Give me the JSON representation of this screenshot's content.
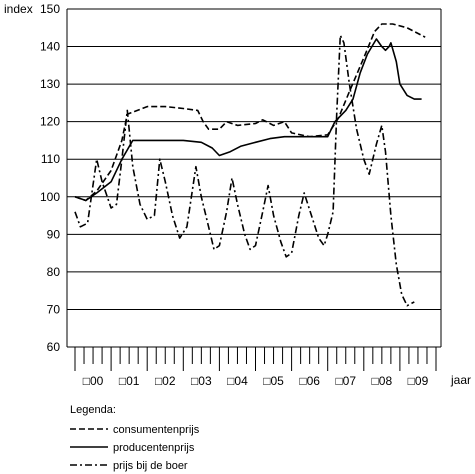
{
  "chart_data": {
    "type": "line",
    "ylabel": "index",
    "xlabel": "jaar",
    "ylim": [
      60,
      150
    ],
    "yticks": [
      "60",
      "70",
      "80",
      "90",
      "100",
      "110",
      "120",
      "130",
      "140",
      "150"
    ],
    "xlim": [
      2000,
      2010
    ],
    "year_labels": [
      "□00",
      "□01",
      "□02",
      "□03",
      "□04",
      "□05",
      "□06",
      "□07",
      "□08",
      "□09"
    ],
    "grid": "horizontal",
    "legend": {
      "title": "Legenda:",
      "position": "bottom-left"
    },
    "series": [
      {
        "name": "consumentenprijs",
        "style": "dashed",
        "points": [
          [
            2000.0,
            100
          ],
          [
            2000.3,
            99
          ],
          [
            2000.6,
            101.5
          ],
          [
            2001.0,
            107
          ],
          [
            2001.3,
            115
          ],
          [
            2001.45,
            122
          ],
          [
            2002.0,
            124
          ],
          [
            2002.5,
            124
          ],
          [
            2003.0,
            123.5
          ],
          [
            2003.4,
            123
          ],
          [
            2003.55,
            120
          ],
          [
            2003.7,
            118
          ],
          [
            2004.0,
            118
          ],
          [
            2004.2,
            120
          ],
          [
            2004.5,
            119
          ],
          [
            2005.0,
            119.5
          ],
          [
            2005.2,
            120.5
          ],
          [
            2005.5,
            119
          ],
          [
            2005.8,
            120
          ],
          [
            2006.0,
            117
          ],
          [
            2006.5,
            116
          ],
          [
            2007.0,
            116.5
          ],
          [
            2007.3,
            121
          ],
          [
            2007.6,
            128
          ],
          [
            2008.0,
            137
          ],
          [
            2008.3,
            144
          ],
          [
            2008.5,
            146
          ],
          [
            2008.8,
            146
          ],
          [
            2009.2,
            145
          ],
          [
            2009.6,
            143
          ],
          [
            2009.7,
            142.5
          ]
        ]
      },
      {
        "name": "producentenprijs",
        "style": "solid",
        "points": [
          [
            2000.0,
            100
          ],
          [
            2000.3,
            99
          ],
          [
            2000.6,
            101
          ],
          [
            2001.0,
            104
          ],
          [
            2001.3,
            110
          ],
          [
            2001.6,
            115
          ],
          [
            2002.0,
            115
          ],
          [
            2002.5,
            115
          ],
          [
            2003.0,
            115
          ],
          [
            2003.5,
            114.5
          ],
          [
            2003.8,
            113
          ],
          [
            2004.0,
            111
          ],
          [
            2004.3,
            112
          ],
          [
            2004.6,
            113.5
          ],
          [
            2005.0,
            114.5
          ],
          [
            2005.4,
            115.5
          ],
          [
            2005.8,
            116
          ],
          [
            2006.2,
            116
          ],
          [
            2006.6,
            116
          ],
          [
            2007.0,
            116
          ],
          [
            2007.2,
            120
          ],
          [
            2007.5,
            123
          ],
          [
            2007.7,
            126
          ],
          [
            2007.9,
            133
          ],
          [
            2008.1,
            138
          ],
          [
            2008.35,
            142
          ],
          [
            2008.5,
            140
          ],
          [
            2008.6,
            139
          ],
          [
            2008.7,
            140
          ],
          [
            2008.75,
            141
          ],
          [
            2008.9,
            136
          ],
          [
            2009.0,
            130
          ],
          [
            2009.2,
            127
          ],
          [
            2009.4,
            126
          ],
          [
            2009.6,
            126
          ]
        ]
      },
      {
        "name": "prijs bij de boer",
        "style": "dash-dot",
        "points": [
          [
            2000.0,
            96
          ],
          [
            2000.15,
            92
          ],
          [
            2000.35,
            93
          ],
          [
            2000.6,
            110
          ],
          [
            2000.75,
            104
          ],
          [
            2001.0,
            97
          ],
          [
            2001.15,
            98
          ],
          [
            2001.3,
            110
          ],
          [
            2001.45,
            123
          ],
          [
            2001.6,
            108
          ],
          [
            2001.8,
            98
          ],
          [
            2002.0,
            94
          ],
          [
            2002.2,
            95
          ],
          [
            2002.35,
            110
          ],
          [
            2002.5,
            104
          ],
          [
            2002.7,
            95
          ],
          [
            2002.9,
            89
          ],
          [
            2003.1,
            92
          ],
          [
            2003.35,
            108
          ],
          [
            2003.5,
            100
          ],
          [
            2003.7,
            92
          ],
          [
            2003.85,
            86
          ],
          [
            2004.0,
            87
          ],
          [
            2004.2,
            96
          ],
          [
            2004.35,
            105
          ],
          [
            2004.5,
            98
          ],
          [
            2004.7,
            90
          ],
          [
            2004.85,
            86
          ],
          [
            2005.0,
            87
          ],
          [
            2005.2,
            96
          ],
          [
            2005.35,
            103
          ],
          [
            2005.5,
            95
          ],
          [
            2005.7,
            88
          ],
          [
            2005.85,
            84
          ],
          [
            2006.0,
            85
          ],
          [
            2006.2,
            95
          ],
          [
            2006.35,
            101
          ],
          [
            2006.55,
            95
          ],
          [
            2006.75,
            89
          ],
          [
            2006.9,
            87
          ],
          [
            2007.0,
            90
          ],
          [
            2007.15,
            96
          ],
          [
            2007.25,
            122
          ],
          [
            2007.35,
            143
          ],
          [
            2007.45,
            141
          ],
          [
            2007.6,
            130
          ],
          [
            2007.8,
            118
          ],
          [
            2008.0,
            110
          ],
          [
            2008.15,
            106
          ],
          [
            2008.35,
            114
          ],
          [
            2008.5,
            119
          ],
          [
            2008.6,
            112
          ],
          [
            2008.75,
            95
          ],
          [
            2008.9,
            82
          ],
          [
            2009.05,
            74
          ],
          [
            2009.2,
            71
          ],
          [
            2009.4,
            72
          ]
        ]
      }
    ]
  }
}
